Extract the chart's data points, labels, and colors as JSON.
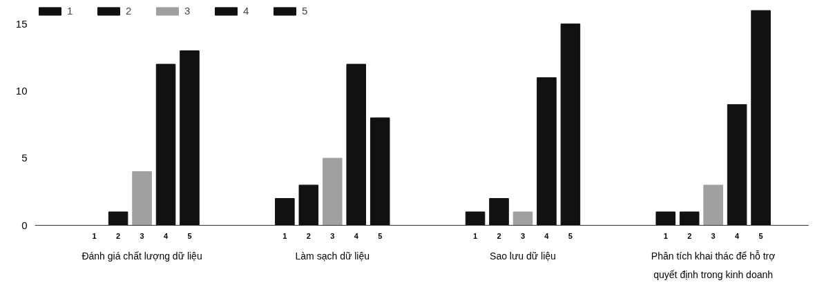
{
  "chart_data": {
    "type": "bar",
    "categories": [
      "Đánh giá chất lượng dữ liệu",
      "Làm sạch dữ liệu",
      "Sao lưu dữ liệu",
      "Phân tích khai thác để hỗ trợ quyết định trong kinh doanh"
    ],
    "series": [
      {
        "name": "1",
        "color": "#111111",
        "values": [
          0,
          2,
          1,
          1
        ]
      },
      {
        "name": "2",
        "color": "#111111",
        "values": [
          1,
          3,
          2,
          1
        ]
      },
      {
        "name": "3",
        "color": "#a0a0a0",
        "values": [
          4,
          5,
          1,
          3
        ]
      },
      {
        "name": "4",
        "color": "#111111",
        "values": [
          12,
          12,
          11,
          9
        ]
      },
      {
        "name": "5",
        "color": "#111111",
        "values": [
          13,
          8,
          15,
          16
        ]
      }
    ],
    "ylim": [
      0,
      16.5
    ],
    "yticks": [
      0,
      5,
      10,
      15
    ],
    "legend": "top left",
    "grid": false
  }
}
